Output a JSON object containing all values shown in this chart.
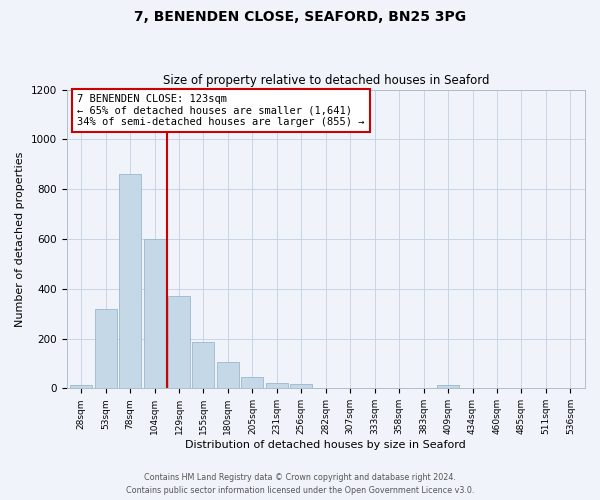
{
  "title": "7, BENENDEN CLOSE, SEAFORD, BN25 3PG",
  "subtitle": "Size of property relative to detached houses in Seaford",
  "xlabel": "Distribution of detached houses by size in Seaford",
  "ylabel": "Number of detached properties",
  "bin_labels": [
    "28sqm",
    "53sqm",
    "78sqm",
    "104sqm",
    "129sqm",
    "155sqm",
    "180sqm",
    "205sqm",
    "231sqm",
    "256sqm",
    "282sqm",
    "307sqm",
    "333sqm",
    "358sqm",
    "383sqm",
    "409sqm",
    "434sqm",
    "460sqm",
    "485sqm",
    "511sqm",
    "536sqm"
  ],
  "bar_values": [
    15,
    320,
    860,
    600,
    370,
    185,
    105,
    47,
    22,
    18,
    0,
    0,
    0,
    0,
    0,
    15,
    0,
    0,
    0,
    0,
    0
  ],
  "bar_color": "#c5d8e8",
  "bar_edge_color": "#9ab8cc",
  "vline_color": "#cc0000",
  "annotation_text": "7 BENENDEN CLOSE: 123sqm\n← 65% of detached houses are smaller (1,641)\n34% of semi-detached houses are larger (855) →",
  "annotation_box_facecolor": "white",
  "annotation_box_edgecolor": "#cc0000",
  "ylim": [
    0,
    1200
  ],
  "yticks": [
    0,
    200,
    400,
    600,
    800,
    1000,
    1200
  ],
  "footer_line1": "Contains HM Land Registry data © Crown copyright and database right 2024.",
  "footer_line2": "Contains public sector information licensed under the Open Government Licence v3.0.",
  "bg_color": "#f0f4fa",
  "grid_color": "#c8d4e4",
  "vline_bin_index": 4
}
